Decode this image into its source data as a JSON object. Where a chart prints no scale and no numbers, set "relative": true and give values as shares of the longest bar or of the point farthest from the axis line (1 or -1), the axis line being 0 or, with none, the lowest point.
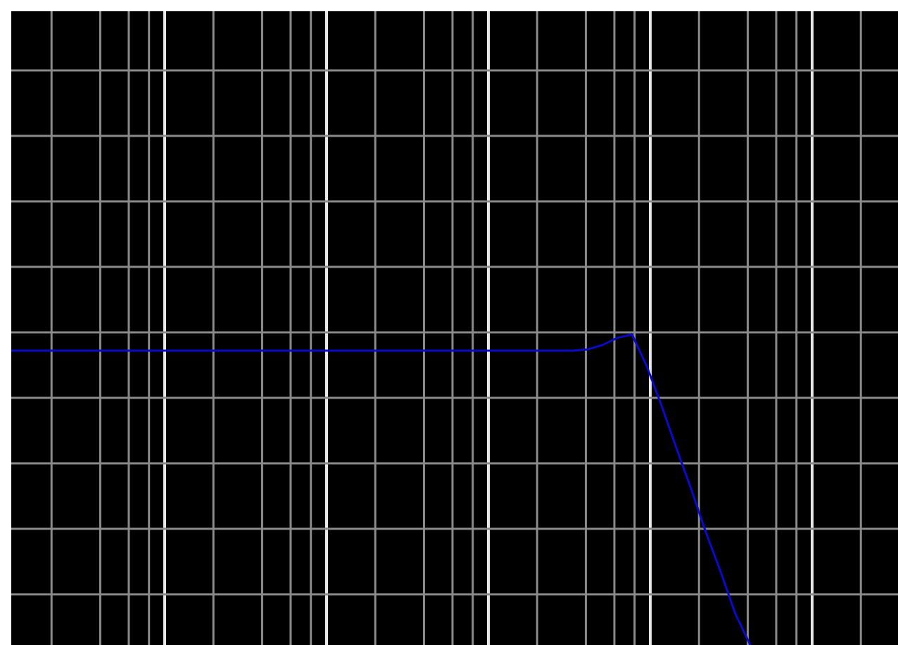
{
  "chart_data": {
    "type": "line",
    "relative": true,
    "grid": true,
    "categories": [
      null,
      null,
      null,
      null,
      null,
      null,
      null,
      null,
      null,
      null,
      null,
      null,
      null,
      null,
      null,
      null,
      null,
      null,
      null,
      null,
      null,
      null,
      null,
      null,
      null,
      null,
      null,
      null,
      null,
      null,
      null,
      null,
      null,
      null,
      null,
      null,
      null,
      null,
      null,
      null,
      null,
      null,
      null,
      null,
      null,
      null,
      null,
      null,
      null,
      null,
      null,
      null,
      null,
      null,
      null,
      null,
      null,
      null,
      null,
      null,
      null
    ],
    "series": [
      {
        "color": "#0a0acd",
        "values": [
          0.948,
          0.948,
          0.948,
          0.948,
          0.948,
          0.948,
          0.948,
          0.948,
          0.948,
          0.948,
          0.948,
          0.948,
          0.948,
          0.948,
          0.948,
          0.948,
          0.948,
          0.948,
          0.948,
          0.948,
          0.948,
          0.948,
          0.948,
          0.948,
          0.948,
          0.948,
          0.948,
          0.948,
          0.948,
          0.948,
          0.948,
          0.948,
          0.948,
          0.948,
          0.948,
          0.948,
          0.948,
          0.948,
          0.948,
          0.952,
          0.966,
          0.989,
          1,
          0.898,
          0.771,
          0.635,
          0.503,
          0.363,
          0.236,
          0.1,
          0,
          null,
          null,
          null,
          null,
          null,
          null,
          null,
          null,
          null,
          null
        ]
      }
    ]
  }
}
